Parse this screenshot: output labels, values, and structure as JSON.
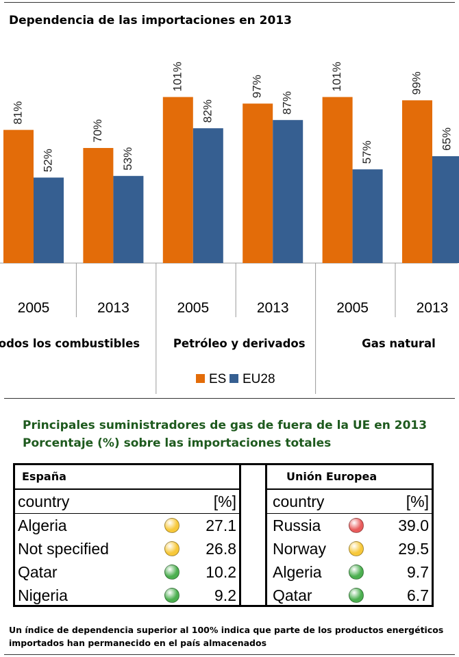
{
  "chart": {
    "title": "Dependencia de las importaciones en 2013"
  },
  "chart_data": {
    "type": "bar",
    "groups": [
      "Todos los combustibles",
      "Petróleo y derivados",
      "Gas natural"
    ],
    "categories": [
      "2005",
      "2013",
      "2005",
      "2013",
      "2005",
      "2013"
    ],
    "series": [
      {
        "name": "ES",
        "color": "#e36c09",
        "values": [
          81,
          70,
          101,
          97,
          101,
          99
        ],
        "labels": [
          "81%",
          "70%",
          "101%",
          "97%",
          "101%",
          "99%"
        ]
      },
      {
        "name": "EU28",
        "color": "#365f91",
        "values": [
          52,
          53,
          82,
          87,
          57,
          65
        ],
        "labels": [
          "52%",
          "53%",
          "82%",
          "87%",
          "57%",
          "65%"
        ]
      }
    ],
    "ylim": [
      0,
      160
    ],
    "legend_position": "bottom",
    "grid": false
  },
  "section2": {
    "title_line1": "Principales suministradores de gas de fuera de la UE en 2013",
    "title_line2": "Porcentaje (%) sobre las importaciones totales"
  },
  "table_es": {
    "title": "España",
    "col_country": "country",
    "col_pct": "[%]",
    "rows": [
      {
        "country": "Algeria",
        "value": "27.1",
        "status": "yellow"
      },
      {
        "country": "Not specified",
        "value": "26.8",
        "status": "yellow"
      },
      {
        "country": "Qatar",
        "value": "10.2",
        "status": "green"
      },
      {
        "country": "Nigeria",
        "value": "9.2",
        "status": "green"
      }
    ]
  },
  "table_eu": {
    "title": "Unión Europea",
    "col_country": "country",
    "col_pct": "[%]",
    "rows": [
      {
        "country": "Russia",
        "value": "39.0",
        "status": "red"
      },
      {
        "country": "Norway",
        "value": "29.5",
        "status": "yellow"
      },
      {
        "country": "Algeria",
        "value": "9.7",
        "status": "green"
      },
      {
        "country": "Qatar",
        "value": "6.7",
        "status": "green"
      }
    ]
  },
  "status_colors": {
    "red": "#e85c5c",
    "yellow": "#f7c83a",
    "green": "#4caf50"
  },
  "footnote": "Un índice de dependencia superior al 100% indica que parte de los productos energéticos importados han permanecido en el país almacenados"
}
